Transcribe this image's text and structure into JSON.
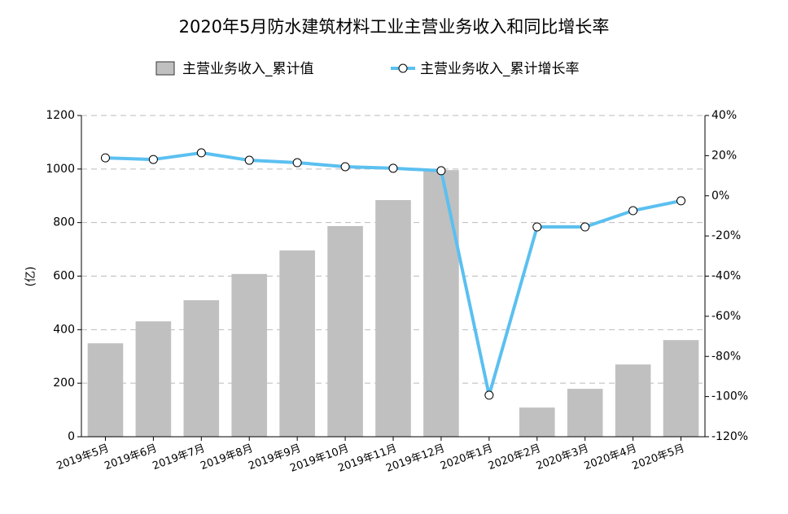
{
  "chart_data": {
    "type": "bar-line",
    "title": "2020年5月防水建筑材料工业主营业务收入和同比增长率",
    "y_label": "(亿)",
    "categories": [
      "2019年5月",
      "2019年6月",
      "2019年7月",
      "2019年8月",
      "2019年9月",
      "2019年10月",
      "2019年11月",
      "2019年12月",
      "2020年1月",
      "2020年2月",
      "2020年3月",
      "2020年4月",
      "2020年5月"
    ],
    "series": [
      {
        "name": "主营业务收入_累计值",
        "type": "bar",
        "color": "#c0c0c0",
        "values": [
          349,
          431,
          510,
          608,
          696,
          787,
          884,
          996,
          null,
          109,
          179,
          270,
          361
        ]
      },
      {
        "name": "主营业务收入_累计增长率",
        "type": "line",
        "axis": "y2",
        "color": "#5bc0f0",
        "values": [
          18.9,
          18.1,
          21.4,
          17.7,
          16.5,
          14.5,
          13.7,
          12.5,
          -99.3,
          -15.5,
          -15.5,
          -7.4,
          -2.5
        ]
      }
    ],
    "ylim": [
      0,
      1200
    ],
    "yticks": [
      0,
      200,
      400,
      600,
      800,
      1000,
      1200
    ],
    "y2lim": [
      -120,
      40
    ],
    "y2ticks": [
      {
        "value": -120,
        "label": "-120%"
      },
      {
        "value": -100,
        "label": "-100%"
      },
      {
        "value": -80,
        "label": "-80%"
      },
      {
        "value": -60,
        "label": "-60%"
      },
      {
        "value": -40,
        "label": "-40%"
      },
      {
        "value": -20,
        "label": "-20%"
      },
      {
        "value": 0,
        "label": "0%"
      },
      {
        "value": 20,
        "label": "20%"
      },
      {
        "value": 40,
        "label": "40%"
      }
    ],
    "grid": true
  }
}
